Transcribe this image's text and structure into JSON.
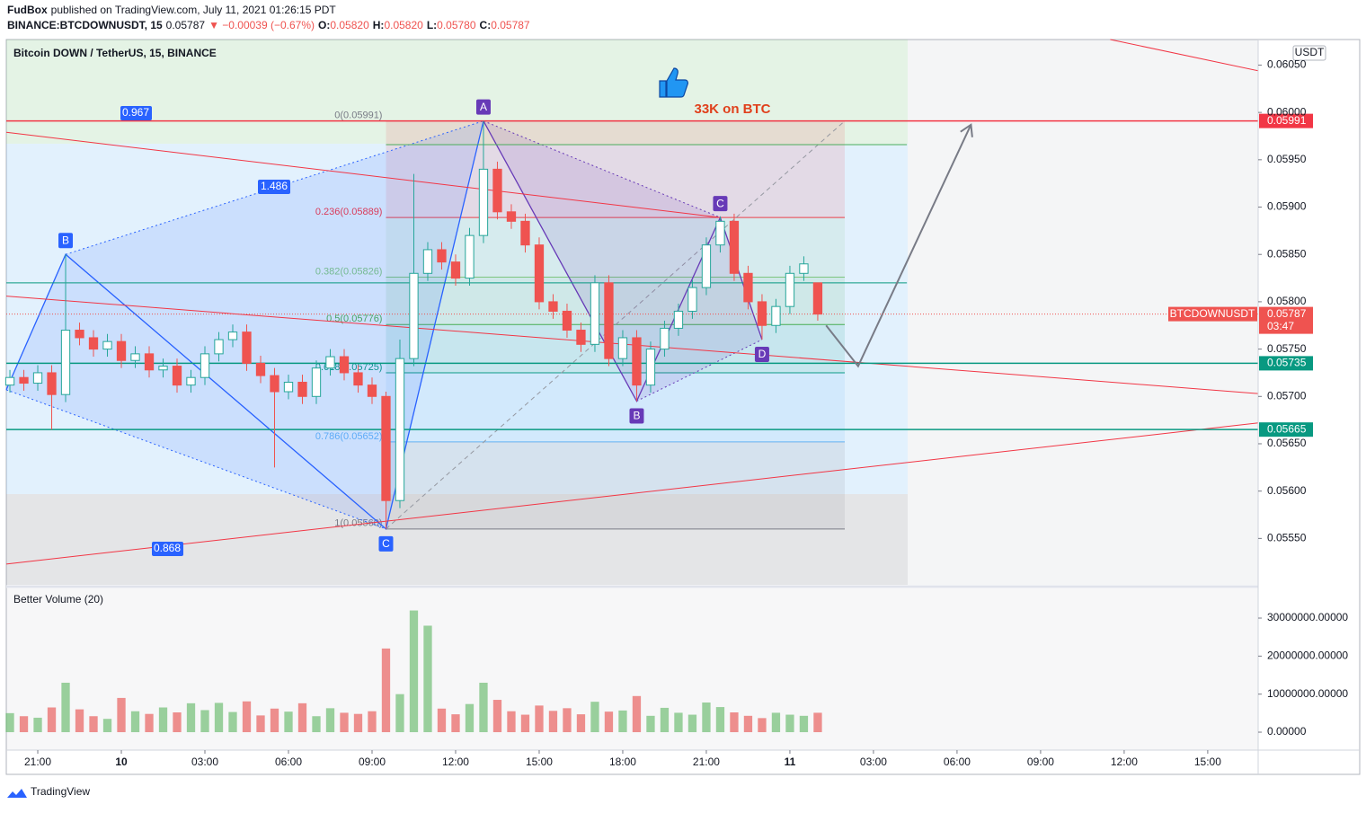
{
  "header": {
    "publisher": "FudBox",
    "published": "published on TradingView.com, July 11, 2021 01:26:15 PDT",
    "symbol": "BINANCE:BTCDOWNUSDT, 15",
    "price": "0.05787",
    "change": "▼ −0.00039 (−0.67%)",
    "ohlc": [
      {
        "key": "O:",
        "value": "0.05820"
      },
      {
        "key": "H:",
        "value": "0.05820"
      },
      {
        "key": "L:",
        "value": "0.05780"
      },
      {
        "key": "C:",
        "value": "0.05787"
      }
    ]
  },
  "chart_data": {
    "type": "candlestick",
    "title": "Bitcoin DOWN / TetherUS, 15, BINANCE",
    "currency": "USDT",
    "xlim": [
      -1.13,
      43.81
    ],
    "xticks": [
      {
        "value": 0,
        "label": "21:00"
      },
      {
        "value": 3,
        "label": "10"
      },
      {
        "value": 6,
        "label": "03:00"
      },
      {
        "value": 9,
        "label": "06:00"
      },
      {
        "value": 12,
        "label": "09:00"
      },
      {
        "value": 15,
        "label": "12:00"
      },
      {
        "value": 18,
        "label": "15:00"
      },
      {
        "value": 21,
        "label": "18:00"
      },
      {
        "value": 24,
        "label": "21:00"
      },
      {
        "value": 27,
        "label": "11"
      },
      {
        "value": 30,
        "label": "03:00"
      },
      {
        "value": 33,
        "label": "06:00"
      },
      {
        "value": 36,
        "label": "09:00"
      },
      {
        "value": 39,
        "label": "12:00"
      },
      {
        "value": 42,
        "label": "15:00"
      }
    ],
    "ylim": [
      0.05501,
      0.06077
    ],
    "yticks": [
      {
        "value": 0.0555,
        "label": "0.05550"
      },
      {
        "value": 0.056,
        "label": "0.05600"
      },
      {
        "value": 0.0565,
        "label": "0.05650"
      },
      {
        "value": 0.057,
        "label": "0.05700"
      },
      {
        "value": 0.0575,
        "label": "0.05750"
      },
      {
        "value": 0.058,
        "label": "0.05800"
      },
      {
        "value": 0.0585,
        "label": "0.05850"
      },
      {
        "value": 0.059,
        "label": "0.05900"
      },
      {
        "value": 0.0595,
        "label": "0.05950"
      },
      {
        "value": 0.06,
        "label": "0.06000"
      },
      {
        "value": 0.0605,
        "label": "0.06050"
      }
    ],
    "up_color": "#26a69a",
    "down_color": "#ef5350",
    "candles": {
      "x": [
        -1,
        -0.5,
        0,
        0.5,
        1,
        1.5,
        2,
        2.5,
        3,
        3.5,
        4,
        4.5,
        5,
        5.5,
        6,
        6.5,
        7,
        7.5,
        8,
        8.5,
        9,
        9.5,
        10,
        10.5,
        11,
        11.5,
        12,
        12.5,
        13,
        13.5,
        14,
        14.5,
        15,
        15.5,
        16,
        16.5,
        17,
        17.5,
        18,
        18.5,
        19,
        19.5,
        20,
        20.5,
        21,
        21.5,
        22,
        22.5,
        23,
        23.5,
        24,
        24.5,
        25,
        25.5,
        26,
        26.5,
        27,
        27.5,
        28
      ],
      "open": [
        0.05712,
        0.0572,
        0.05714,
        0.05725,
        0.05702,
        0.0577,
        0.05762,
        0.0575,
        0.05758,
        0.05738,
        0.05745,
        0.05728,
        0.05732,
        0.05712,
        0.0572,
        0.05745,
        0.0576,
        0.05768,
        0.05735,
        0.05722,
        0.05705,
        0.05715,
        0.057,
        0.0573,
        0.05742,
        0.05725,
        0.05712,
        0.057,
        0.0559,
        0.0574,
        0.0583,
        0.05855,
        0.05842,
        0.05825,
        0.0587,
        0.0594,
        0.05895,
        0.05885,
        0.0586,
        0.058,
        0.0579,
        0.0577,
        0.05755,
        0.0582,
        0.0574,
        0.05762,
        0.05712,
        0.0575,
        0.05772,
        0.0579,
        0.05815,
        0.0586,
        0.05885,
        0.0583,
        0.058,
        0.05775,
        0.05795,
        0.0583,
        0.0582
      ],
      "high": [
        0.05728,
        0.05728,
        0.05733,
        0.05733,
        0.0585,
        0.05778,
        0.0577,
        0.05766,
        0.05766,
        0.05753,
        0.05753,
        0.0574,
        0.0574,
        0.05728,
        0.05753,
        0.05768,
        0.05776,
        0.05776,
        0.05743,
        0.0573,
        0.05723,
        0.05723,
        0.05738,
        0.0575,
        0.0575,
        0.05733,
        0.0572,
        0.05705,
        0.0576,
        0.05935,
        0.05863,
        0.05863,
        0.0585,
        0.05878,
        0.05991,
        0.05948,
        0.05903,
        0.05893,
        0.05868,
        0.05808,
        0.05798,
        0.05778,
        0.05828,
        0.05828,
        0.0577,
        0.0577,
        0.05758,
        0.0578,
        0.05798,
        0.05823,
        0.05868,
        0.0589,
        0.05893,
        0.05838,
        0.05808,
        0.05803,
        0.05838,
        0.05848,
        0.0582
      ],
      "low": [
        0.05704,
        0.05706,
        0.05706,
        0.05665,
        0.05694,
        0.05754,
        0.05742,
        0.05742,
        0.0573,
        0.0573,
        0.0572,
        0.0572,
        0.05704,
        0.05704,
        0.05712,
        0.05737,
        0.05752,
        0.05727,
        0.05714,
        0.05625,
        0.05697,
        0.05692,
        0.05692,
        0.05722,
        0.05717,
        0.05704,
        0.05692,
        0.0556,
        0.05582,
        0.05732,
        0.05822,
        0.05834,
        0.05817,
        0.05817,
        0.05862,
        0.05887,
        0.05877,
        0.05852,
        0.05792,
        0.05782,
        0.05762,
        0.05747,
        0.05747,
        0.05732,
        0.05732,
        0.05695,
        0.05704,
        0.05742,
        0.05764,
        0.05782,
        0.05807,
        0.05852,
        0.05822,
        0.05792,
        0.0576,
        0.05767,
        0.05787,
        0.05822,
        0.0578
      ],
      "close": [
        0.0572,
        0.05714,
        0.05725,
        0.05702,
        0.0577,
        0.05762,
        0.0575,
        0.05758,
        0.05738,
        0.05745,
        0.05728,
        0.05732,
        0.05712,
        0.0572,
        0.05745,
        0.0576,
        0.05768,
        0.05735,
        0.05722,
        0.05705,
        0.05715,
        0.057,
        0.0573,
        0.05742,
        0.05725,
        0.05712,
        0.057,
        0.0559,
        0.0574,
        0.0583,
        0.05855,
        0.05842,
        0.05825,
        0.0587,
        0.0594,
        0.05895,
        0.05885,
        0.0586,
        0.058,
        0.0579,
        0.0577,
        0.05755,
        0.0582,
        0.0574,
        0.05762,
        0.05712,
        0.0575,
        0.05772,
        0.0579,
        0.05815,
        0.0586,
        0.05885,
        0.0583,
        0.058,
        0.05775,
        0.05795,
        0.0583,
        0.0584,
        0.05787
      ]
    },
    "volume": {
      "title": "Better Volume (20)",
      "ylim": [
        -4720000,
        37800000
      ],
      "yticks": [
        {
          "value": 0,
          "label": "0.00000"
        },
        {
          "value": 10000000,
          "label": "10000000.00000"
        },
        {
          "value": 20000000,
          "label": "20000000.00000"
        },
        {
          "value": 30000000,
          "label": "30000000.00000"
        }
      ],
      "values": [
        5000000,
        4200000,
        3800000,
        6500000,
        13000000,
        6000000,
        4200000,
        3500000,
        9000000,
        5500000,
        4800000,
        6500000,
        5200000,
        7600000,
        5800000,
        7700000,
        5300000,
        8100000,
        4400000,
        6200000,
        5400000,
        7600000,
        4200000,
        6300000,
        5100000,
        4800000,
        5500000,
        22000000,
        10000000,
        32000000,
        28000000,
        6200000,
        4700000,
        7400000,
        13000000,
        8500000,
        5500000,
        4600000,
        7000000,
        5600000,
        6300000,
        4700000,
        8000000,
        5400000,
        5700000,
        9500000,
        4300000,
        6400000,
        5100000,
        4600000,
        7800000,
        6600000,
        5200000,
        4300000,
        3700000,
        5100000,
        4600000,
        4300000,
        5100000
      ]
    },
    "last": {
      "name": "BTCDOWNUSDT",
      "value": 0.05787,
      "label": "0.05787",
      "countdown": "03:47",
      "color": "#ef5350"
    },
    "levels": [
      {
        "value": 0.05991,
        "label": "0.05991",
        "color": "#f23645"
      },
      {
        "value": 0.05735,
        "label": "0.05735",
        "color": "#089981"
      },
      {
        "value": 0.05665,
        "label": "0.05665",
        "color": "#089981"
      }
    ],
    "hlines": [
      {
        "value": 0.0582,
        "x": [
          -1.13,
          31.2
        ],
        "color": "#089981"
      },
      {
        "value": 0.05966,
        "x": [
          12.5,
          31.2
        ],
        "color": "#4caf50"
      }
    ],
    "trendlines": [
      {
        "points": [
          [
            -1.13,
            0.05979
          ],
          [
            24.5,
            0.05889
          ]
        ],
        "color": "#f23645"
      },
      {
        "points": [
          [
            -1.13,
            0.05806
          ],
          [
            43.81,
            0.05703
          ]
        ],
        "color": "#f23645"
      },
      {
        "points": [
          [
            -1.13,
            0.05523
          ],
          [
            43.81,
            0.05672
          ]
        ],
        "color": "#f23645"
      },
      {
        "points": [
          [
            38.5,
            0.06077
          ],
          [
            43.81,
            0.06044
          ]
        ],
        "color": "#f23645"
      }
    ],
    "fib": {
      "x": [
        12.5,
        28.97
      ],
      "levels": [
        {
          "value": 0.05991,
          "label": "0(0.05991)",
          "color": "#787b86"
        },
        {
          "value": 0.05889,
          "label": "0.236(0.05889)",
          "color": "#f23645"
        },
        {
          "value": 0.05826,
          "label": "0.382(0.05826)",
          "color": "#81c784"
        },
        {
          "value": 0.05776,
          "label": "0.5(0.05776)",
          "color": "#4caf50"
        },
        {
          "value": 0.05725,
          "label": "0.618(0.05725)",
          "color": "#089981"
        },
        {
          "value": 0.05652,
          "label": "0.786(0.05652)",
          "color": "#64b5f6"
        },
        {
          "value": 0.0556,
          "label": "1(0.05560)",
          "color": "#787b86"
        }
      ]
    },
    "patterns": [
      {
        "color": "#2962ff",
        "points": [
          {
            "x": -1.13,
            "y": 0.05707
          },
          {
            "x": 1,
            "y": 0.0585,
            "label": "B"
          },
          {
            "x": 12.5,
            "y": 0.0556,
            "label": "C"
          },
          {
            "x": 16,
            "y": 0.05991
          }
        ]
      },
      {
        "color": "#673ab7",
        "points": [
          {
            "x": 16,
            "y": 0.05991,
            "label": "A"
          },
          {
            "x": 21.5,
            "y": 0.05695,
            "label": "B"
          },
          {
            "x": 24.5,
            "y": 0.05889,
            "label": "C"
          },
          {
            "x": 26,
            "y": 0.0576,
            "label": "D"
          }
        ]
      }
    ],
    "pattern_ratios": [
      "0.967",
      "1.486",
      "0.868"
    ],
    "projection": [
      [
        28.3,
        0.05775
      ],
      [
        29.45,
        0.05732
      ],
      [
        33.5,
        0.05987
      ]
    ],
    "fib_diagonal": [
      [
        12.5,
        0.0556
      ],
      [
        28.97,
        0.05991
      ]
    ],
    "annotation": "33K on BTC"
  },
  "footer": "TradingView"
}
